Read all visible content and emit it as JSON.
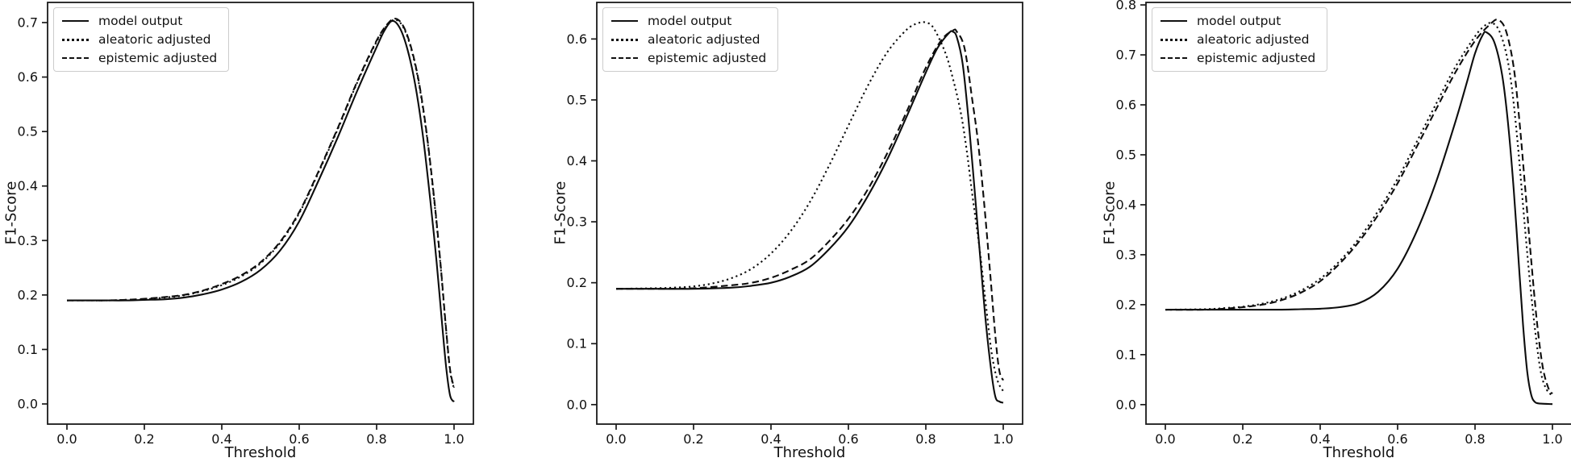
{
  "figure": {
    "background": "#ffffff",
    "axis_color": "#1a1a1a",
    "line_color": "#0d0d0d",
    "text_color": "#111111"
  },
  "chart_data": [
    {
      "type": "line",
      "xlabel": "Threshold",
      "ylabel": "F1-Score",
      "xlim": [
        -0.05,
        1.05
      ],
      "ylim": [
        -0.037,
        0.737
      ],
      "xticks": [
        0.0,
        0.2,
        0.4,
        0.6,
        0.8,
        1.0
      ],
      "yticks": [
        0.0,
        0.1,
        0.2,
        0.3,
        0.4,
        0.5,
        0.6,
        0.7
      ],
      "grid": false,
      "legend_position": "upper-left",
      "series": [
        {
          "name": "model output",
          "style": "solid",
          "points": [
            [
              0,
              0.19
            ],
            [
              0.05,
              0.19
            ],
            [
              0.1,
              0.19
            ],
            [
              0.15,
              0.19
            ],
            [
              0.2,
              0.191
            ],
            [
              0.25,
              0.192
            ],
            [
              0.3,
              0.195
            ],
            [
              0.35,
              0.201
            ],
            [
              0.4,
              0.21
            ],
            [
              0.45,
              0.224
            ],
            [
              0.5,
              0.246
            ],
            [
              0.55,
              0.281
            ],
            [
              0.6,
              0.335
            ],
            [
              0.65,
              0.41
            ],
            [
              0.7,
              0.49
            ],
            [
              0.75,
              0.575
            ],
            [
              0.8,
              0.655
            ],
            [
              0.82,
              0.685
            ],
            [
              0.84,
              0.703
            ],
            [
              0.86,
              0.69
            ],
            [
              0.88,
              0.65
            ],
            [
              0.9,
              0.585
            ],
            [
              0.92,
              0.49
            ],
            [
              0.94,
              0.365
            ],
            [
              0.955,
              0.26
            ],
            [
              0.97,
              0.14
            ],
            [
              0.98,
              0.065
            ],
            [
              0.99,
              0.015
            ],
            [
              1.0,
              0.004
            ]
          ]
        },
        {
          "name": "aleatoric adjusted",
          "style": "dotted",
          "points": [
            [
              0,
              0.19
            ],
            [
              0.05,
              0.19
            ],
            [
              0.1,
              0.19
            ],
            [
              0.15,
              0.191
            ],
            [
              0.2,
              0.192
            ],
            [
              0.25,
              0.195
            ],
            [
              0.3,
              0.199
            ],
            [
              0.35,
              0.207
            ],
            [
              0.4,
              0.218
            ],
            [
              0.45,
              0.234
            ],
            [
              0.5,
              0.258
            ],
            [
              0.55,
              0.295
            ],
            [
              0.6,
              0.35
            ],
            [
              0.65,
              0.425
            ],
            [
              0.7,
              0.505
            ],
            [
              0.75,
              0.59
            ],
            [
              0.8,
              0.665
            ],
            [
              0.83,
              0.697
            ],
            [
              0.85,
              0.705
            ],
            [
              0.87,
              0.69
            ],
            [
              0.89,
              0.65
            ],
            [
              0.91,
              0.585
            ],
            [
              0.93,
              0.49
            ],
            [
              0.95,
              0.365
            ],
            [
              0.965,
              0.255
            ],
            [
              0.98,
              0.13
            ],
            [
              0.99,
              0.06
            ],
            [
              1.0,
              0.028
            ]
          ]
        },
        {
          "name": "epistemic adjusted",
          "style": "dashed",
          "points": [
            [
              0,
              0.19
            ],
            [
              0.05,
              0.19
            ],
            [
              0.1,
              0.19
            ],
            [
              0.15,
              0.191
            ],
            [
              0.2,
              0.193
            ],
            [
              0.25,
              0.196
            ],
            [
              0.3,
              0.2
            ],
            [
              0.35,
              0.208
            ],
            [
              0.4,
              0.22
            ],
            [
              0.45,
              0.236
            ],
            [
              0.5,
              0.26
            ],
            [
              0.55,
              0.297
            ],
            [
              0.6,
              0.352
            ],
            [
              0.65,
              0.427
            ],
            [
              0.7,
              0.507
            ],
            [
              0.75,
              0.592
            ],
            [
              0.8,
              0.667
            ],
            [
              0.83,
              0.699
            ],
            [
              0.85,
              0.707
            ],
            [
              0.87,
              0.692
            ],
            [
              0.89,
              0.652
            ],
            [
              0.91,
              0.588
            ],
            [
              0.93,
              0.493
            ],
            [
              0.95,
              0.368
            ],
            [
              0.965,
              0.258
            ],
            [
              0.98,
              0.133
            ],
            [
              0.99,
              0.062
            ],
            [
              1.0,
              0.03
            ]
          ]
        }
      ]
    },
    {
      "type": "line",
      "xlabel": "Threshold",
      "ylabel": "F1-Score",
      "xlim": [
        -0.05,
        1.05
      ],
      "ylim": [
        -0.032,
        0.66
      ],
      "xticks": [
        0.0,
        0.2,
        0.4,
        0.6,
        0.8,
        1.0
      ],
      "yticks": [
        0.0,
        0.1,
        0.2,
        0.3,
        0.4,
        0.5,
        0.6
      ],
      "grid": false,
      "legend_position": "upper-left",
      "series": [
        {
          "name": "model output",
          "style": "solid",
          "points": [
            [
              0,
              0.19
            ],
            [
              0.1,
              0.19
            ],
            [
              0.2,
              0.19
            ],
            [
              0.3,
              0.192
            ],
            [
              0.35,
              0.195
            ],
            [
              0.4,
              0.2
            ],
            [
              0.45,
              0.21
            ],
            [
              0.5,
              0.226
            ],
            [
              0.55,
              0.255
            ],
            [
              0.6,
              0.292
            ],
            [
              0.65,
              0.342
            ],
            [
              0.7,
              0.402
            ],
            [
              0.75,
              0.472
            ],
            [
              0.8,
              0.545
            ],
            [
              0.83,
              0.585
            ],
            [
              0.86,
              0.61
            ],
            [
              0.87,
              0.612
            ],
            [
              0.88,
              0.603
            ],
            [
              0.895,
              0.56
            ],
            [
              0.91,
              0.47
            ],
            [
              0.925,
              0.36
            ],
            [
              0.94,
              0.245
            ],
            [
              0.955,
              0.135
            ],
            [
              0.97,
              0.05
            ],
            [
              0.98,
              0.012
            ],
            [
              0.99,
              0.005
            ],
            [
              1.0,
              0.003
            ]
          ]
        },
        {
          "name": "aleatoric adjusted",
          "style": "dotted",
          "points": [
            [
              0,
              0.19
            ],
            [
              0.1,
              0.191
            ],
            [
              0.15,
              0.192
            ],
            [
              0.2,
              0.194
            ],
            [
              0.25,
              0.199
            ],
            [
              0.3,
              0.208
            ],
            [
              0.35,
              0.223
            ],
            [
              0.4,
              0.248
            ],
            [
              0.45,
              0.284
            ],
            [
              0.5,
              0.332
            ],
            [
              0.55,
              0.392
            ],
            [
              0.6,
              0.458
            ],
            [
              0.65,
              0.523
            ],
            [
              0.7,
              0.578
            ],
            [
              0.75,
              0.615
            ],
            [
              0.78,
              0.626
            ],
            [
              0.8,
              0.627
            ],
            [
              0.82,
              0.618
            ],
            [
              0.85,
              0.578
            ],
            [
              0.87,
              0.535
            ],
            [
              0.89,
              0.48
            ],
            [
              0.905,
              0.42
            ],
            [
              0.92,
              0.345
            ],
            [
              0.94,
              0.25
            ],
            [
              0.955,
              0.165
            ],
            [
              0.97,
              0.085
            ],
            [
              0.985,
              0.04
            ],
            [
              1.0,
              0.022
            ]
          ]
        },
        {
          "name": "epistemic adjusted",
          "style": "dashed",
          "points": [
            [
              0,
              0.19
            ],
            [
              0.1,
              0.19
            ],
            [
              0.2,
              0.191
            ],
            [
              0.3,
              0.196
            ],
            [
              0.35,
              0.2
            ],
            [
              0.4,
              0.208
            ],
            [
              0.45,
              0.221
            ],
            [
              0.5,
              0.238
            ],
            [
              0.55,
              0.268
            ],
            [
              0.6,
              0.305
            ],
            [
              0.65,
              0.353
            ],
            [
              0.7,
              0.412
            ],
            [
              0.75,
              0.48
            ],
            [
              0.8,
              0.553
            ],
            [
              0.84,
              0.598
            ],
            [
              0.87,
              0.614
            ],
            [
              0.88,
              0.612
            ],
            [
              0.9,
              0.585
            ],
            [
              0.92,
              0.5
            ],
            [
              0.935,
              0.43
            ],
            [
              0.95,
              0.335
            ],
            [
              0.965,
              0.225
            ],
            [
              0.98,
              0.11
            ],
            [
              0.99,
              0.055
            ],
            [
              1.0,
              0.04
            ]
          ]
        }
      ]
    },
    {
      "type": "line",
      "xlabel": "Threshold",
      "ylabel": "F1-Score",
      "xlim": [
        -0.05,
        1.05
      ],
      "ylim": [
        -0.039,
        0.805
      ],
      "xticks": [
        0.0,
        0.2,
        0.4,
        0.6,
        0.8,
        1.0
      ],
      "yticks": [
        0.0,
        0.1,
        0.2,
        0.3,
        0.4,
        0.5,
        0.6,
        0.7,
        0.8
      ],
      "grid": false,
      "legend_position": "upper-left",
      "series": [
        {
          "name": "model output",
          "style": "solid",
          "points": [
            [
              0,
              0.19
            ],
            [
              0.1,
              0.19
            ],
            [
              0.2,
              0.19
            ],
            [
              0.3,
              0.19
            ],
            [
              0.35,
              0.191
            ],
            [
              0.4,
              0.192
            ],
            [
              0.45,
              0.195
            ],
            [
              0.5,
              0.203
            ],
            [
              0.55,
              0.226
            ],
            [
              0.6,
              0.272
            ],
            [
              0.65,
              0.348
            ],
            [
              0.7,
              0.447
            ],
            [
              0.75,
              0.568
            ],
            [
              0.78,
              0.648
            ],
            [
              0.8,
              0.703
            ],
            [
              0.82,
              0.74
            ],
            [
              0.83,
              0.745
            ],
            [
              0.85,
              0.725
            ],
            [
              0.87,
              0.66
            ],
            [
              0.885,
              0.565
            ],
            [
              0.9,
              0.43
            ],
            [
              0.915,
              0.26
            ],
            [
              0.925,
              0.15
            ],
            [
              0.935,
              0.065
            ],
            [
              0.945,
              0.02
            ],
            [
              0.955,
              0.005
            ],
            [
              0.97,
              0.002
            ],
            [
              1.0,
              0.001
            ]
          ]
        },
        {
          "name": "aleatoric adjusted",
          "style": "dotted",
          "points": [
            [
              0,
              0.19
            ],
            [
              0.1,
              0.191
            ],
            [
              0.15,
              0.193
            ],
            [
              0.2,
              0.196
            ],
            [
              0.25,
              0.202
            ],
            [
              0.3,
              0.212
            ],
            [
              0.35,
              0.228
            ],
            [
              0.4,
              0.252
            ],
            [
              0.45,
              0.287
            ],
            [
              0.5,
              0.332
            ],
            [
              0.55,
              0.388
            ],
            [
              0.6,
              0.452
            ],
            [
              0.65,
              0.527
            ],
            [
              0.7,
              0.603
            ],
            [
              0.75,
              0.677
            ],
            [
              0.8,
              0.737
            ],
            [
              0.82,
              0.755
            ],
            [
              0.84,
              0.764
            ],
            [
              0.86,
              0.752
            ],
            [
              0.88,
              0.705
            ],
            [
              0.895,
              0.635
            ],
            [
              0.91,
              0.525
            ],
            [
              0.925,
              0.39
            ],
            [
              0.94,
              0.26
            ],
            [
              0.955,
              0.15
            ],
            [
              0.97,
              0.065
            ],
            [
              0.985,
              0.03
            ],
            [
              1.0,
              0.018
            ]
          ]
        },
        {
          "name": "epistemic adjusted",
          "style": "dashed",
          "points": [
            [
              0,
              0.19
            ],
            [
              0.1,
              0.19
            ],
            [
              0.15,
              0.192
            ],
            [
              0.2,
              0.195
            ],
            [
              0.25,
              0.2
            ],
            [
              0.3,
              0.209
            ],
            [
              0.35,
              0.224
            ],
            [
              0.4,
              0.247
            ],
            [
              0.45,
              0.282
            ],
            [
              0.5,
              0.326
            ],
            [
              0.55,
              0.38
            ],
            [
              0.6,
              0.443
            ],
            [
              0.65,
              0.517
            ],
            [
              0.7,
              0.592
            ],
            [
              0.75,
              0.666
            ],
            [
              0.8,
              0.728
            ],
            [
              0.84,
              0.762
            ],
            [
              0.86,
              0.77
            ],
            [
              0.88,
              0.748
            ],
            [
              0.9,
              0.675
            ],
            [
              0.915,
              0.565
            ],
            [
              0.93,
              0.43
            ],
            [
              0.945,
              0.29
            ],
            [
              0.96,
              0.165
            ],
            [
              0.975,
              0.075
            ],
            [
              0.99,
              0.032
            ],
            [
              1.0,
              0.022
            ]
          ]
        }
      ]
    }
  ]
}
